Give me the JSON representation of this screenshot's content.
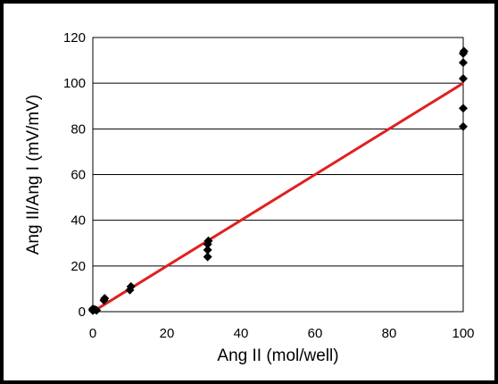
{
  "chart_data": {
    "type": "scatter",
    "title": "",
    "xlabel": "Ang II (mol/well)",
    "ylabel": "Ang II/Ang I (mV/mV)",
    "xlim": [
      0,
      100
    ],
    "ylim": [
      0,
      120
    ],
    "x_ticks": [
      "0",
      "20",
      "40",
      "60",
      "80",
      "100"
    ],
    "y_ticks": [
      "0",
      "20",
      "40",
      "60",
      "80",
      "100",
      "120"
    ],
    "grid": "horizontal",
    "legend": "none",
    "series": [
      {
        "marker": "diamond",
        "color": "#000000",
        "points": [
          [
            0,
            0.5
          ],
          [
            0,
            0.8
          ],
          [
            0,
            1.2
          ],
          [
            0.5,
            1.0
          ],
          [
            1,
            0.6
          ],
          [
            3,
            5
          ],
          [
            3.2,
            5.8
          ],
          [
            10,
            9.5
          ],
          [
            10.3,
            11
          ],
          [
            31,
            24
          ],
          [
            31,
            27
          ],
          [
            31,
            29.5
          ],
          [
            31.2,
            31
          ],
          [
            100,
            81
          ],
          [
            100,
            89
          ],
          [
            100,
            102
          ],
          [
            100,
            109
          ],
          [
            100,
            113
          ],
          [
            100.2,
            114
          ]
        ]
      }
    ],
    "fit_line": {
      "color": "#e02020",
      "x": [
        0,
        100
      ],
      "y": [
        0,
        100
      ]
    }
  }
}
